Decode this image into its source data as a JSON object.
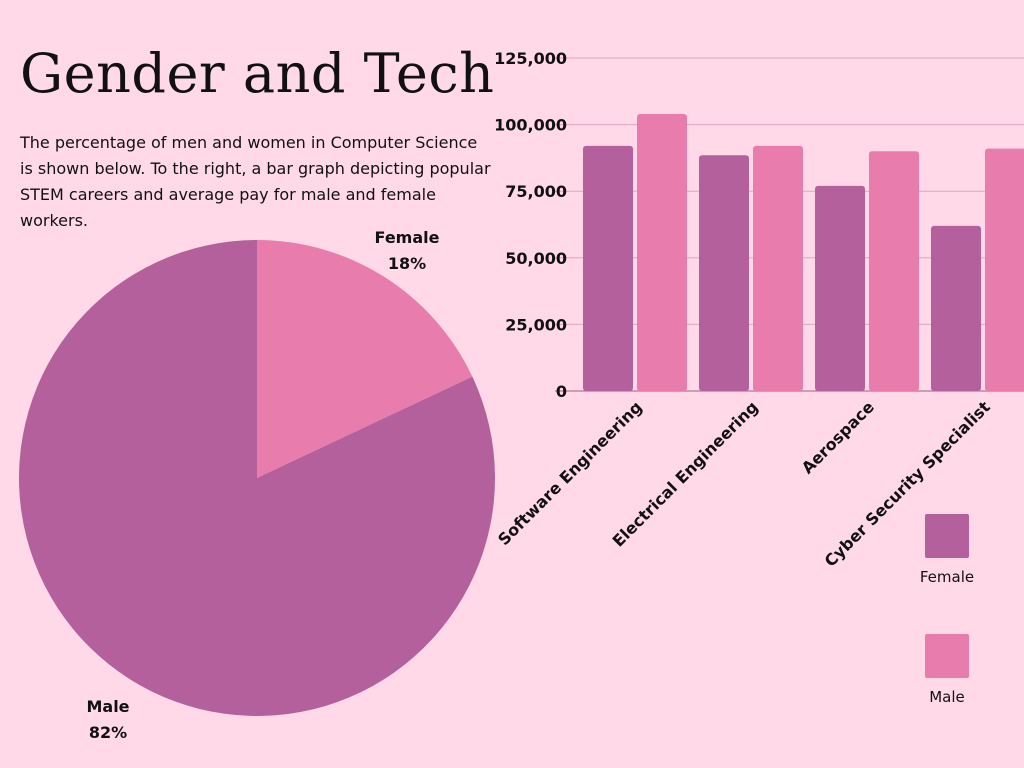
{
  "title": "Gender and Tech",
  "description": "The percentage of men and women in Computer Science is shown below. To the right, a bar graph depicting popular STEM careers and average pay for male and female workers.",
  "colors": {
    "background": "#ffd9e8",
    "female": "#b3609c",
    "male": "#e87dad"
  },
  "chart_data": [
    {
      "type": "pie",
      "slices": [
        {
          "label": "Female",
          "value": 18,
          "value_label": "18%",
          "color": "#e87dad"
        },
        {
          "label": "Male",
          "value": 82,
          "value_label": "82%",
          "color": "#b3609c"
        }
      ]
    },
    {
      "type": "bar",
      "categories": [
        "Software Engineering",
        "Electrical Engineering",
        "Aerospace",
        "Cyber Security Specialist"
      ],
      "series": [
        {
          "name": "Female",
          "color": "#b3609c",
          "values": [
            92000,
            88500,
            77000,
            62000
          ]
        },
        {
          "name": "Male",
          "color": "#e87dad",
          "values": [
            104000,
            92000,
            90000,
            91000
          ]
        }
      ],
      "ylim": [
        0,
        125000
      ],
      "yticks": [
        "0",
        "25,000",
        "50,000",
        "75,000",
        "100,000",
        "125,000"
      ],
      "grid": true,
      "legend": "bottom-right"
    }
  ]
}
